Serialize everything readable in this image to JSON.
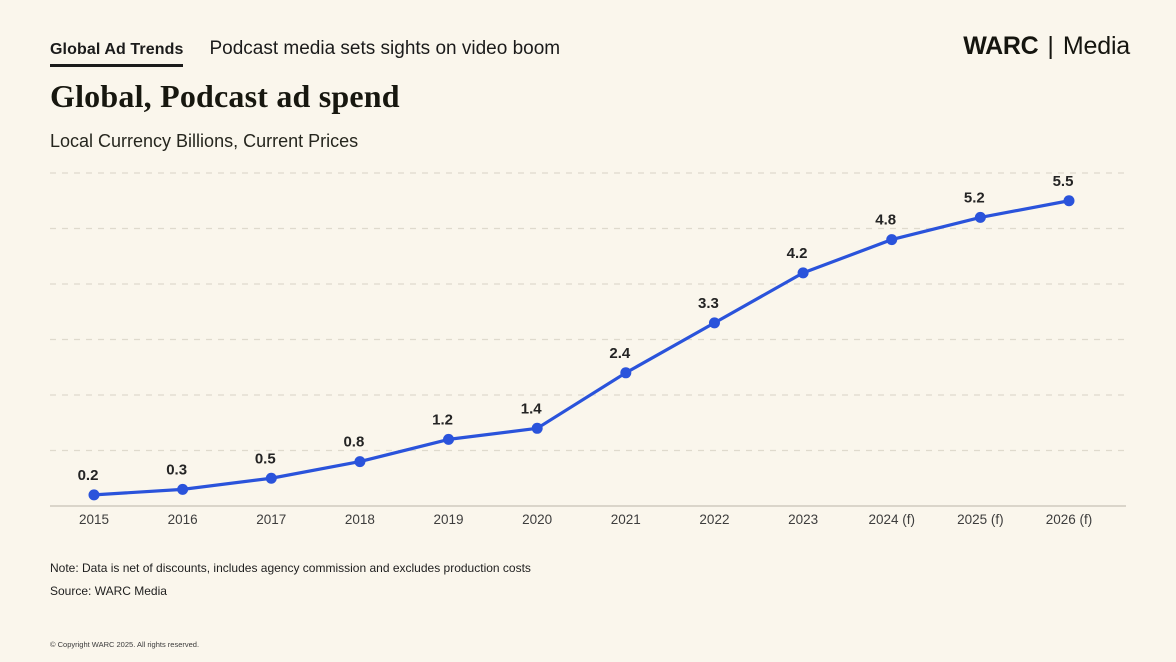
{
  "header": {
    "series_label": "Global Ad Trends",
    "headline": "Podcast media sets sights on video boom",
    "logo_primary": "WARC",
    "logo_divider": "|",
    "logo_secondary": "Media"
  },
  "title": "Global, Podcast ad spend",
  "subtitle": "Local Currency Billions, Current Prices",
  "chart_data": {
    "type": "line",
    "title": "Global, Podcast ad spend",
    "subtitle": "Local Currency Billions, Current Prices",
    "categories": [
      "2015",
      "2016",
      "2017",
      "2018",
      "2019",
      "2020",
      "2021",
      "2022",
      "2023",
      "2024 (f)",
      "2025 (f)",
      "2026 (f)"
    ],
    "values": [
      0.2,
      0.3,
      0.5,
      0.8,
      1.2,
      1.4,
      2.4,
      3.3,
      4.2,
      4.8,
      5.2,
      5.5
    ],
    "data_labels": [
      "0.2",
      "0.3",
      "0.5",
      "0.8",
      "1.2",
      "1.4",
      "2.4",
      "3.3",
      "4.2",
      "4.8",
      "5.2",
      "5.5"
    ],
    "xlabel": "",
    "ylabel": "Local Currency Billions, Current Prices",
    "ylim": [
      0,
      6
    ],
    "grid": "horizontal-dashed",
    "legend": "none",
    "line_color": "#2A53DB",
    "marker": "circle"
  },
  "footer": {
    "note": "Note: Data is net of discounts, includes agency commission and excludes production costs",
    "source": "Source: WARC Media",
    "copyright": "© Copyright WARC 2025. All rights reserved."
  },
  "theme": {
    "background": "#FAF6EC",
    "text": "#1E1E1E",
    "accent": "#2A53DB",
    "gridline": "#DFDACD",
    "axis": "#C6C1B5",
    "tick_label": "#3D3D3D",
    "data_label": "#242424"
  }
}
